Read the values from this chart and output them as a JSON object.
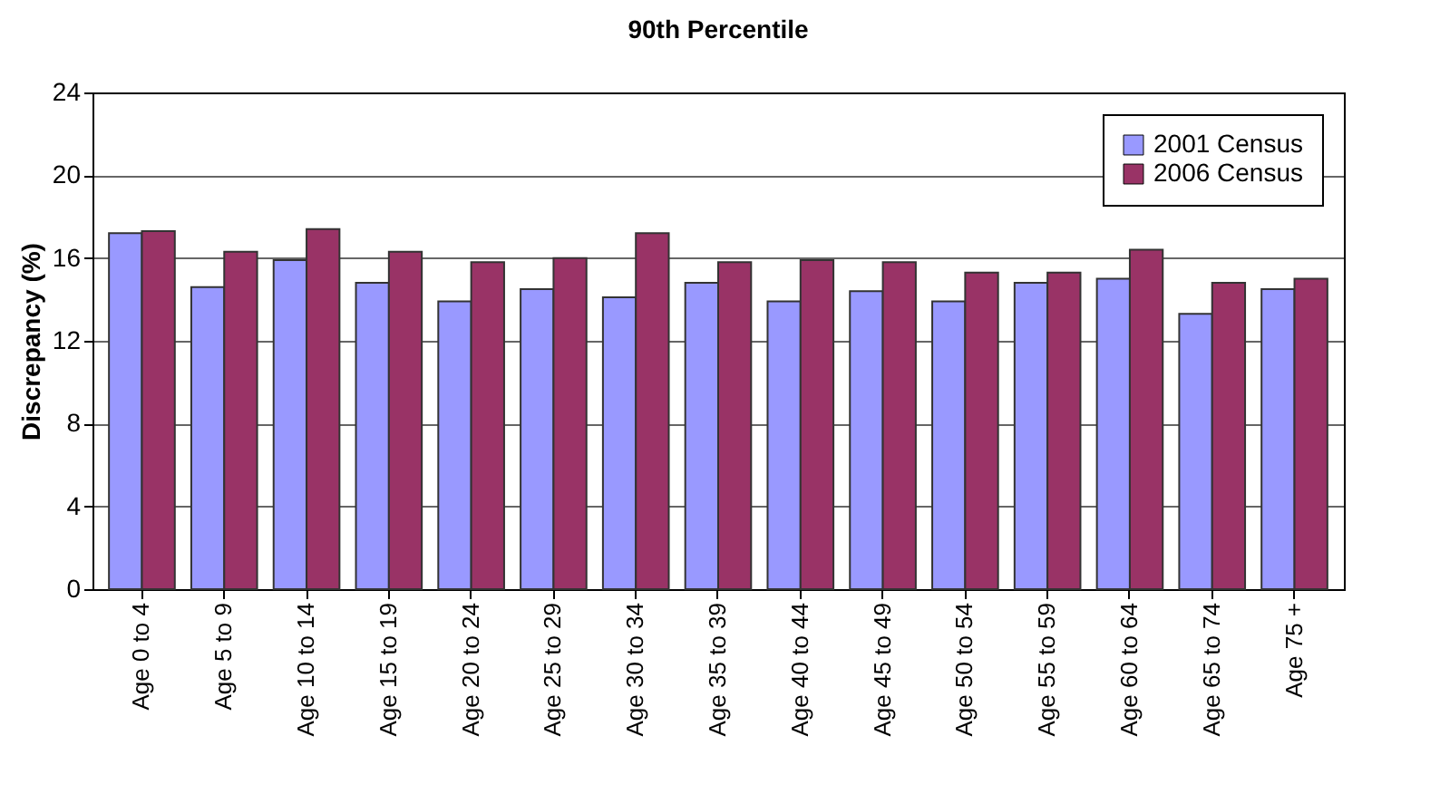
{
  "chart_data": {
    "type": "bar",
    "title": "90th Percentile",
    "ylabel": "Discrepancy (%)",
    "categories": [
      "Age 0 to 4",
      "Age 5 to 9",
      "Age 10 to 14",
      "Age 15 to 19",
      "Age 20 to 24",
      "Age 25 to 29",
      "Age 30 to 34",
      "Age 35 to 39",
      "Age 40 to 44",
      "Age 45 to 49",
      "Age 50 to 54",
      "Age 55 to 59",
      "Age 60 to 64",
      "Age 65 to 74",
      "Age 75 +"
    ],
    "series": [
      {
        "name": "2001 Census",
        "color": "#9999ff",
        "values": [
          17.2,
          14.6,
          15.9,
          14.8,
          13.9,
          14.5,
          14.1,
          14.8,
          13.9,
          14.4,
          13.9,
          14.8,
          15.0,
          13.3,
          14.5
        ]
      },
      {
        "name": "2006 Census",
        "color": "#993366",
        "values": [
          17.3,
          16.3,
          17.4,
          16.3,
          15.8,
          16.0,
          17.2,
          15.8,
          15.9,
          15.8,
          15.3,
          15.3,
          16.4,
          14.8,
          15.0
        ]
      }
    ],
    "ylim": [
      0,
      24
    ],
    "yticks": [
      0,
      4,
      8,
      12,
      16,
      20,
      24
    ],
    "grid": "y",
    "legend": "top right"
  }
}
